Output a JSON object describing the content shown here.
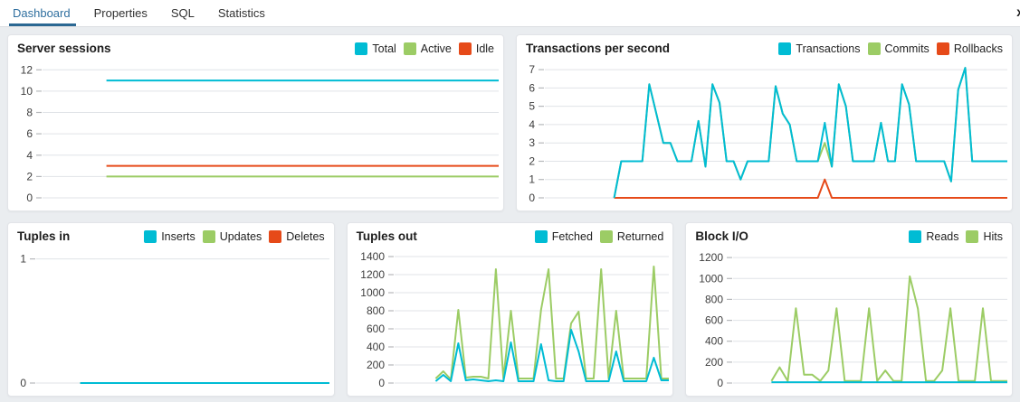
{
  "header": {
    "close_glyph": "x"
  },
  "tabs": {
    "items": [
      {
        "label": "Dashboard",
        "active": true
      },
      {
        "label": "Properties",
        "active": false
      },
      {
        "label": "SQL",
        "active": false
      },
      {
        "label": "Statistics",
        "active": false
      }
    ]
  },
  "ui_colors": {
    "accent_blue": "#2f6f9f",
    "series_cyan": "#00BCD4",
    "series_green": "#9CCC65",
    "series_red": "#E64A19",
    "page_background": "#eaedf0",
    "panel_background": "#ffffff",
    "gridline": "#e0e3e7"
  },
  "chart_data": [
    {
      "id": "server-sessions",
      "type": "line",
      "title": "Server sessions",
      "xlabel": "",
      "ylabel": "",
      "ylim": [
        0,
        12.7
      ],
      "yticks": [
        0,
        2,
        4,
        6,
        8,
        10,
        12
      ],
      "grid": "horizontal",
      "legend_position": "top-right",
      "start_frac": 0.14,
      "legend": [
        {
          "label": "Total",
          "color": "#00BCD4"
        },
        {
          "label": "Active",
          "color": "#9CCC65"
        },
        {
          "label": "Idle",
          "color": "#E64A19"
        }
      ],
      "series": [
        {
          "name": "Idle",
          "color": "#E64A19",
          "values": [
            3,
            3,
            3,
            3
          ]
        },
        {
          "name": "Active",
          "color": "#9CCC65",
          "values": [
            2,
            2,
            2,
            2
          ]
        },
        {
          "name": "Total",
          "color": "#00BCD4",
          "values": [
            11,
            11,
            11,
            11
          ]
        }
      ]
    },
    {
      "id": "transactions-per-second",
      "type": "line",
      "title": "Transactions per second",
      "xlabel": "",
      "ylabel": "",
      "ylim": [
        0,
        7.4
      ],
      "yticks": [
        0,
        1,
        2,
        3,
        4,
        5,
        6,
        7
      ],
      "grid": "horizontal",
      "legend_position": "top-right",
      "start_frac": 0.15,
      "legend": [
        {
          "label": "Transactions",
          "color": "#00BCD4"
        },
        {
          "label": "Commits",
          "color": "#9CCC65"
        },
        {
          "label": "Rollbacks",
          "color": "#E64A19"
        }
      ],
      "series": [
        {
          "name": "Rollbacks",
          "color": "#E64A19",
          "values": [
            0,
            0,
            0,
            0,
            0,
            0,
            0,
            0,
            0,
            0,
            0,
            0,
            0,
            0,
            0,
            0,
            0,
            0,
            0,
            0,
            0,
            0,
            0,
            0,
            0,
            0,
            0,
            0,
            0,
            0,
            1,
            0,
            0,
            0,
            0,
            0,
            0,
            0,
            0,
            0,
            0,
            0,
            0,
            0,
            0,
            0,
            0,
            0,
            0,
            0,
            0,
            0,
            0,
            0,
            0,
            0,
            0
          ]
        },
        {
          "name": "Commits",
          "color": "#9CCC65",
          "values": [
            0,
            2,
            2,
            2,
            2,
            6.2,
            4.6,
            3,
            3,
            2,
            2,
            2,
            4.2,
            1.7,
            6.2,
            5.2,
            2,
            2,
            1,
            2,
            2,
            2,
            2,
            6.1,
            4.6,
            4,
            2,
            2,
            2,
            2,
            3,
            1.7,
            6.2,
            5,
            2,
            2,
            2,
            2,
            4.1,
            2,
            2,
            6.2,
            5.1,
            2,
            2,
            2,
            2,
            2,
            0.9,
            5.9,
            7.1,
            2,
            2,
            2,
            2,
            2,
            2
          ]
        },
        {
          "name": "Transactions",
          "color": "#00BCD4",
          "values": [
            0,
            2,
            2,
            2,
            2,
            6.2,
            4.6,
            3,
            3,
            2,
            2,
            2,
            4.2,
            1.7,
            6.2,
            5.2,
            2,
            2,
            1,
            2,
            2,
            2,
            2,
            6.1,
            4.6,
            4,
            2,
            2,
            2,
            2,
            4.1,
            1.7,
            6.2,
            5,
            2,
            2,
            2,
            2,
            4.1,
            2,
            2,
            6.2,
            5.1,
            2,
            2,
            2,
            2,
            2,
            0.9,
            5.9,
            7.1,
            2,
            2,
            2,
            2,
            2,
            2
          ]
        }
      ]
    },
    {
      "id": "tuples-in",
      "type": "line",
      "title": "Tuples in",
      "xlabel": "",
      "ylabel": "",
      "ylim": [
        0,
        1.07
      ],
      "yticks": [
        0,
        1
      ],
      "grid": "horizontal",
      "legend_position": "top-right",
      "start_frac": 0.15,
      "legend": [
        {
          "label": "Inserts",
          "color": "#00BCD4"
        },
        {
          "label": "Updates",
          "color": "#9CCC65"
        },
        {
          "label": "Deletes",
          "color": "#E64A19"
        }
      ],
      "series": [
        {
          "name": "Deletes",
          "color": "#E64A19",
          "values": [
            0,
            0
          ]
        },
        {
          "name": "Updates",
          "color": "#9CCC65",
          "values": [
            0,
            0
          ]
        },
        {
          "name": "Inserts",
          "color": "#00BCD4",
          "values": [
            0,
            0
          ]
        }
      ]
    },
    {
      "id": "tuples-out",
      "type": "line",
      "title": "Tuples out",
      "xlabel": "",
      "ylabel": "",
      "ylim": [
        0,
        1470
      ],
      "yticks": [
        0,
        200,
        400,
        600,
        800,
        1000,
        1200,
        1400
      ],
      "grid": "horizontal",
      "legend_position": "top-right",
      "start_frac": 0.15,
      "legend": [
        {
          "label": "Fetched",
          "color": "#00BCD4"
        },
        {
          "label": "Returned",
          "color": "#9CCC65"
        }
      ],
      "series": [
        {
          "name": "Returned",
          "color": "#9CCC65",
          "values": [
            50,
            130,
            40,
            810,
            60,
            70,
            70,
            50,
            1260,
            50,
            800,
            50,
            50,
            50,
            810,
            1260,
            50,
            50,
            660,
            790,
            50,
            50,
            1260,
            50,
            800,
            50,
            50,
            50,
            50,
            1290,
            50,
            50
          ]
        },
        {
          "name": "Fetched",
          "color": "#00BCD4",
          "values": [
            20,
            90,
            20,
            440,
            30,
            40,
            30,
            20,
            30,
            20,
            450,
            20,
            20,
            20,
            430,
            30,
            20,
            20,
            590,
            350,
            20,
            20,
            20,
            20,
            350,
            20,
            20,
            20,
            20,
            280,
            30,
            30
          ]
        }
      ]
    },
    {
      "id": "block-io",
      "type": "line",
      "title": "Block I/O",
      "xlabel": "",
      "ylabel": "",
      "ylim": [
        0,
        1270
      ],
      "yticks": [
        0,
        200,
        400,
        600,
        800,
        1000,
        1200
      ],
      "grid": "horizontal",
      "legend_position": "top-right",
      "start_frac": 0.14,
      "legend": [
        {
          "label": "Reads",
          "color": "#00BCD4"
        },
        {
          "label": "Hits",
          "color": "#9CCC65"
        }
      ],
      "series": [
        {
          "name": "Hits",
          "color": "#9CCC65",
          "values": [
            20,
            150,
            20,
            715,
            80,
            80,
            20,
            120,
            715,
            20,
            20,
            20,
            715,
            20,
            120,
            20,
            20,
            1020,
            710,
            20,
            20,
            120,
            715,
            20,
            20,
            20,
            715,
            20,
            20,
            20
          ]
        },
        {
          "name": "Reads",
          "color": "#00BCD4",
          "values": [
            8,
            8
          ]
        }
      ]
    }
  ]
}
